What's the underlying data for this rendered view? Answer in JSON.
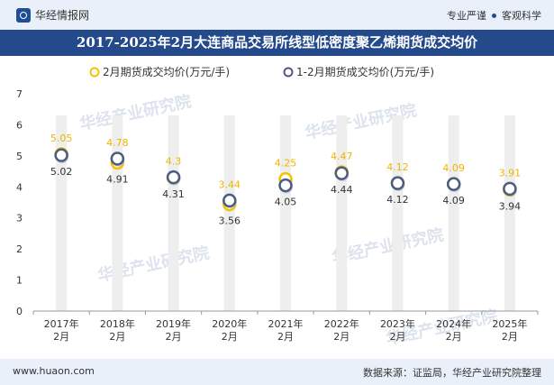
{
  "header": {
    "brand": "华经情报网",
    "slogan_left": "专业严谨",
    "slogan_right": "客观科学"
  },
  "title": "2017-2025年2月大连商品交易所线型低密度聚乙烯期货成交均价",
  "footer": {
    "site": "www.huaon.com",
    "source": "数据来源：证监局，华经产业研究院整理"
  },
  "chart_data": {
    "type": "line",
    "title": "2017-2025年2月大连商品交易所线型低密度聚乙烯期货成交均价",
    "categories": [
      "2017年\n2月",
      "2018年\n2月",
      "2019年\n2月",
      "2020年\n2月",
      "2021年\n2月",
      "2022年\n2月",
      "2023年\n2月",
      "2024年\n2月",
      "2025年\n2月"
    ],
    "series": [
      {
        "name": "2月期货成交均价(万元/手)",
        "color": "#f5c200",
        "values": [
          5.05,
          4.78,
          4.3,
          3.44,
          4.25,
          4.47,
          4.12,
          4.09,
          3.91
        ]
      },
      {
        "name": "1-2月期货成交均价(万元/手)",
        "color": "#4d5d80",
        "values": [
          5.02,
          4.91,
          4.31,
          3.56,
          4.05,
          4.44,
          4.12,
          4.09,
          3.94
        ]
      }
    ],
    "ylim": [
      0,
      7
    ],
    "yticks": [
      0,
      1,
      2,
      3,
      4,
      5,
      6,
      7
    ],
    "xlabel": "",
    "ylabel": "",
    "legend": "top-center",
    "grid": false,
    "markers_only": true
  }
}
